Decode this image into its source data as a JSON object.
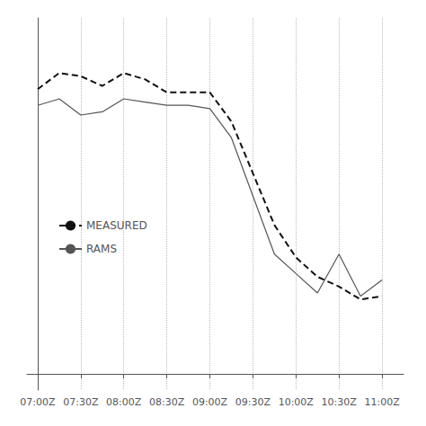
{
  "chart_data": {
    "type": "line",
    "x": [
      0,
      1,
      2,
      3,
      4,
      5,
      6,
      7,
      8,
      9,
      10,
      11,
      12,
      13,
      14,
      15,
      16
    ],
    "series": [
      {
        "name": "MEASURED",
        "color": "#111111",
        "line_style": "dashed",
        "values": [
          0.88,
          0.93,
          0.92,
          0.89,
          0.93,
          0.91,
          0.87,
          0.87,
          0.87,
          0.78,
          0.62,
          0.46,
          0.36,
          0.3,
          0.27,
          0.23,
          0.24
        ]
      },
      {
        "name": "RAMS",
        "color": "#555555",
        "line_style": "solid",
        "values": [
          0.83,
          0.85,
          0.8,
          0.81,
          0.85,
          0.84,
          0.83,
          0.83,
          0.82,
          0.73,
          0.55,
          0.37,
          0.31,
          0.25,
          0.37,
          0.24,
          0.29
        ]
      }
    ],
    "xlim": [
      -0.5,
      17.0
    ],
    "xticks": [
      {
        "value": 0,
        "label": "07:00Z"
      },
      {
        "value": 2,
        "label": "07:30Z"
      },
      {
        "value": 4,
        "label": "08:00Z"
      },
      {
        "value": 6,
        "label": "08:30Z"
      },
      {
        "value": 8,
        "label": "09:00Z"
      },
      {
        "value": 10,
        "label": "09:30Z"
      },
      {
        "value": 12,
        "label": "10:00Z"
      },
      {
        "value": 14,
        "label": "10:30Z"
      },
      {
        "value": 16,
        "label": "11:00Z"
      }
    ],
    "ylim": [
      -0.05,
      1.1
    ],
    "tick_labels": "x",
    "grid": true,
    "legend": "left"
  }
}
